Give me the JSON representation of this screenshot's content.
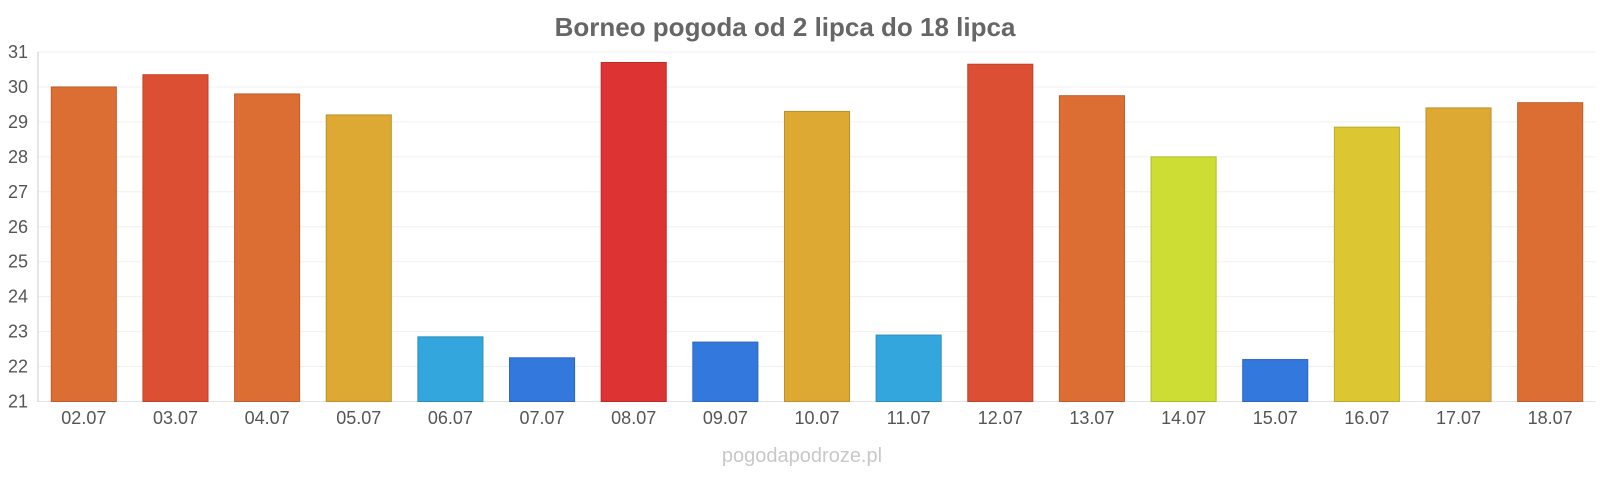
{
  "chart_data": {
    "type": "bar",
    "title": "Borneo pogoda od 2 lipca do 18 lipca",
    "categories": [
      "02.07",
      "03.07",
      "04.07",
      "05.07",
      "06.07",
      "07.07",
      "08.07",
      "09.07",
      "10.07",
      "11.07",
      "12.07",
      "13.07",
      "14.07",
      "15.07",
      "16.07",
      "17.07",
      "18.07"
    ],
    "values": [
      30.0,
      30.35,
      29.8,
      29.2,
      22.85,
      22.25,
      30.7,
      22.7,
      29.3,
      22.9,
      30.65,
      29.75,
      28.0,
      22.2,
      28.85,
      29.4,
      29.55
    ],
    "colors": [
      "#dd6e33",
      "#dd4f33",
      "#dd6e33",
      "#dda933",
      "#33a6dd",
      "#3378dd",
      "#dd3333",
      "#3378dd",
      "#dda933",
      "#33a6dd",
      "#dd4f33",
      "#dd6e33",
      "#cddd33",
      "#3378dd",
      "#dcc733",
      "#dda933",
      "#dd6e33"
    ],
    "ylim": [
      21,
      31
    ],
    "yticks": [
      21,
      22,
      23,
      24,
      25,
      26,
      27,
      28,
      29,
      30,
      31
    ],
    "xlabel": "",
    "ylabel": "",
    "grid": true
  },
  "watermark": "pogodapodroze.pl"
}
